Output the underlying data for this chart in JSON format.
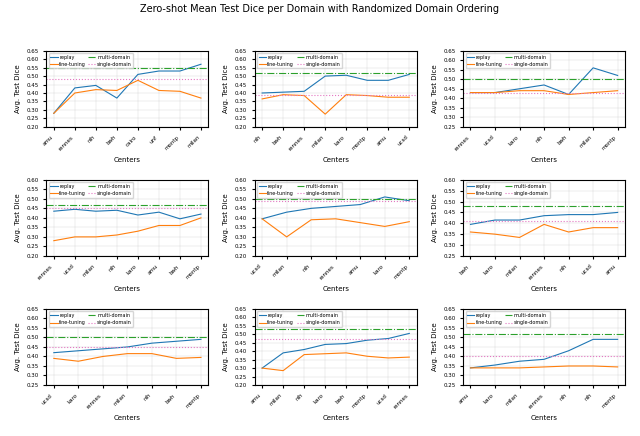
{
  "title": "Zero-shot Mean Test Dice per Domain with Randomized Domain Ordering",
  "rows": 3,
  "cols": 3,
  "subplots": [
    {
      "row": 0,
      "col": 0,
      "centers": [
        "amu",
        "rennes",
        "nih",
        "bwh",
        "cairo",
        "unf",
        "montp",
        "milan"
      ],
      "replay": [
        0.28,
        0.43,
        0.445,
        0.37,
        0.51,
        0.53,
        0.53,
        0.57
      ],
      "finetuning": [
        0.28,
        0.4,
        0.42,
        0.415,
        0.475,
        0.415,
        0.41,
        0.37
      ],
      "multidomain": 0.55,
      "singledomain": 0.48,
      "ylim": [
        0.2,
        0.65
      ],
      "yticks": [
        0.2,
        0.25,
        0.3,
        0.35,
        0.4,
        0.45,
        0.5,
        0.55,
        0.6,
        0.65
      ]
    },
    {
      "row": 0,
      "col": 1,
      "centers": [
        "nih",
        "bwh",
        "rennes",
        "milan",
        "karo",
        "montp",
        "amu",
        "ucsd"
      ],
      "replay": [
        0.4,
        0.405,
        0.41,
        0.5,
        0.505,
        0.475,
        0.475,
        0.51
      ],
      "finetuning": [
        0.365,
        0.39,
        0.385,
        0.275,
        0.39,
        0.385,
        0.375,
        0.375
      ],
      "multidomain": 0.52,
      "singledomain": 0.39,
      "ylim": [
        0.2,
        0.65
      ],
      "yticks": [
        0.2,
        0.25,
        0.3,
        0.35,
        0.4,
        0.45,
        0.5,
        0.55,
        0.6,
        0.65
      ]
    },
    {
      "row": 0,
      "col": 2,
      "centers": [
        "rennes",
        "ucsd",
        "karo",
        "nih",
        "bwh",
        "milan",
        "montp"
      ],
      "replay": [
        0.43,
        0.43,
        0.45,
        0.47,
        0.42,
        0.56,
        0.52
      ],
      "finetuning": [
        0.43,
        0.43,
        0.44,
        0.44,
        0.42,
        0.43,
        0.44
      ],
      "multidomain": 0.5,
      "singledomain": 0.43,
      "ylim": [
        0.25,
        0.65
      ],
      "yticks": [
        0.25,
        0.3,
        0.35,
        0.4,
        0.45,
        0.5,
        0.55,
        0.6,
        0.65
      ]
    },
    {
      "row": 1,
      "col": 0,
      "centers": [
        "rennes",
        "ucsd",
        "milan",
        "nih",
        "karo",
        "amu",
        "bwh",
        "montp"
      ],
      "replay": [
        0.435,
        0.445,
        0.435,
        0.44,
        0.415,
        0.43,
        0.395,
        0.42
      ],
      "finetuning": [
        0.28,
        0.3,
        0.3,
        0.31,
        0.33,
        0.36,
        0.36,
        0.4
      ],
      "multidomain": 0.465,
      "singledomain": 0.45,
      "ylim": [
        0.2,
        0.6
      ],
      "yticks": [
        0.2,
        0.25,
        0.3,
        0.35,
        0.4,
        0.45,
        0.5,
        0.55,
        0.6
      ]
    },
    {
      "row": 1,
      "col": 1,
      "centers": [
        "ucsd",
        "milan",
        "nih",
        "rennes",
        "amu",
        "karo",
        "montp"
      ],
      "replay": [
        0.395,
        0.43,
        0.45,
        0.46,
        0.47,
        0.51,
        0.49
      ],
      "finetuning": [
        0.395,
        0.3,
        0.39,
        0.395,
        0.375,
        0.355,
        0.38
      ],
      "multidomain": 0.5,
      "singledomain": 0.49,
      "ylim": [
        0.2,
        0.6
      ],
      "yticks": [
        0.2,
        0.25,
        0.3,
        0.35,
        0.4,
        0.45,
        0.5,
        0.55,
        0.6
      ]
    },
    {
      "row": 1,
      "col": 2,
      "centers": [
        "bwh",
        "karo",
        "milan",
        "rennes",
        "nih",
        "ucsd",
        "amu"
      ],
      "replay": [
        0.395,
        0.415,
        0.415,
        0.435,
        0.44,
        0.44,
        0.45
      ],
      "finetuning": [
        0.36,
        0.35,
        0.335,
        0.395,
        0.36,
        0.38,
        0.38
      ],
      "multidomain": 0.48,
      "singledomain": 0.41,
      "ylim": [
        0.25,
        0.6
      ],
      "yticks": [
        0.25,
        0.3,
        0.35,
        0.4,
        0.45,
        0.5,
        0.55,
        0.6
      ]
    },
    {
      "row": 2,
      "col": 0,
      "centers": [
        "ucsd",
        "karo",
        "rennes",
        "milan",
        "nih",
        "bwh",
        "montp"
      ],
      "replay": [
        0.42,
        0.43,
        0.44,
        0.45,
        0.47,
        0.48,
        0.49
      ],
      "finetuning": [
        0.39,
        0.375,
        0.4,
        0.415,
        0.415,
        0.39,
        0.395
      ],
      "multidomain": 0.5,
      "singledomain": 0.45,
      "ylim": [
        0.25,
        0.65
      ],
      "yticks": [
        0.25,
        0.3,
        0.35,
        0.4,
        0.45,
        0.5,
        0.55,
        0.6,
        0.65
      ]
    },
    {
      "row": 2,
      "col": 1,
      "centers": [
        "amu",
        "milan",
        "nih",
        "karo",
        "bwh",
        "montp",
        "ucsd",
        "rennes"
      ],
      "replay": [
        0.3,
        0.39,
        0.41,
        0.44,
        0.445,
        0.465,
        0.475,
        0.505
      ],
      "finetuning": [
        0.3,
        0.285,
        0.38,
        0.385,
        0.39,
        0.37,
        0.36,
        0.365
      ],
      "multidomain": 0.53,
      "singledomain": 0.47,
      "ylim": [
        0.2,
        0.65
      ],
      "yticks": [
        0.2,
        0.25,
        0.3,
        0.35,
        0.4,
        0.45,
        0.5,
        0.55,
        0.6,
        0.65
      ]
    },
    {
      "row": 2,
      "col": 2,
      "centers": [
        "amu",
        "karo",
        "milan",
        "rennes",
        "nih",
        "nih",
        "montp"
      ],
      "replay": [
        0.34,
        0.355,
        0.375,
        0.385,
        0.43,
        0.49,
        0.49
      ],
      "finetuning": [
        0.34,
        0.34,
        0.34,
        0.345,
        0.35,
        0.35,
        0.345
      ],
      "multidomain": 0.52,
      "singledomain": 0.4,
      "ylim": [
        0.25,
        0.65
      ],
      "yticks": [
        0.25,
        0.3,
        0.35,
        0.4,
        0.45,
        0.5,
        0.55,
        0.6,
        0.65
      ]
    }
  ],
  "colors": {
    "replay": "#1f77b4",
    "finetuning": "#ff7f0e",
    "multidomain": "#2ca02c",
    "singledomain": "#e377c2"
  },
  "ylabel": "Avg. Test Dice",
  "xlabel": "Centers"
}
